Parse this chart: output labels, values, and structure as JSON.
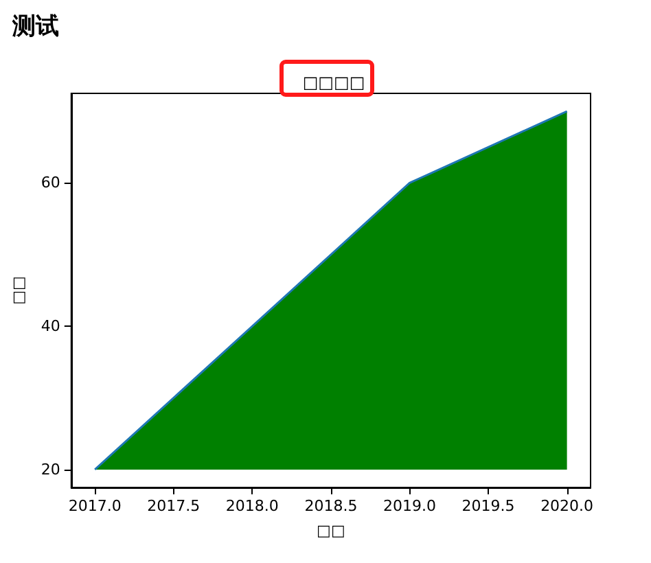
{
  "chart_data": {
    "type": "area",
    "title": "□□□□",
    "subtitle": "测试",
    "xlabel": "□□",
    "ylabel": "□□",
    "x": [
      2017,
      2019,
      2020
    ],
    "series": [
      {
        "color": "#008000",
        "values": [
          20,
          60,
          70
        ]
      }
    ],
    "xlim": [
      2016.85,
      2020.15
    ],
    "ylim": [
      17.5,
      72.5
    ],
    "xticks": [
      {
        "value": 2017,
        "label": "2017.0"
      },
      {
        "value": 2017.5,
        "label": "2017.5"
      },
      {
        "value": 2018,
        "label": "2018.0"
      },
      {
        "value": 2018.5,
        "label": "2018.5"
      },
      {
        "value": 2019,
        "label": "2019.0"
      },
      {
        "value": 2019.5,
        "label": "2019.5"
      },
      {
        "value": 2020,
        "label": "2020.0"
      }
    ],
    "yticks": [
      20,
      40,
      60
    ],
    "grid": false
  }
}
